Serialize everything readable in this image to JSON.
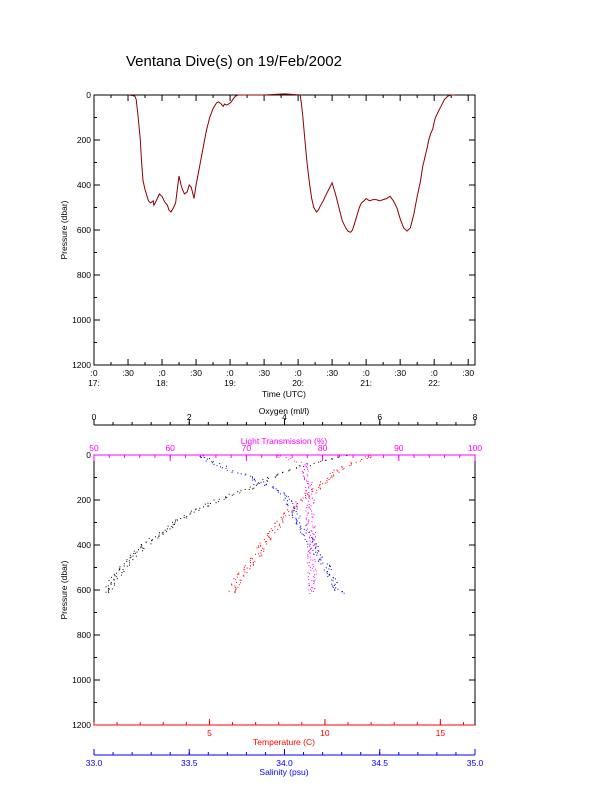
{
  "title": "Ventana Dive(s) on 19/Feb/2002",
  "colors": {
    "axes": "#000000",
    "pressure_trace": "#8b0000",
    "temperature": "#ff0000",
    "salinity": "#0000ff",
    "oxygen": "#000000",
    "light_transmission": "#ff00ff"
  },
  "chart_data": [
    {
      "type": "line",
      "title": "Ventana Dive(s) on 19/Feb/2002",
      "xlabel": "Time (UTC)",
      "ylabel": "Pressure (dbar)",
      "x_unit": "hours UTC",
      "xlim": [
        17.0,
        22.6
      ],
      "ylim": [
        1200,
        0
      ],
      "y_ticks": [
        0,
        200,
        400,
        600,
        800,
        1000,
        1200
      ],
      "x_ticks": [
        {
          "x": 17.0,
          "minute": ":0",
          "hour": "17:"
        },
        {
          "x": 17.5,
          "minute": ":30",
          "hour": ""
        },
        {
          "x": 18.0,
          "minute": ":0",
          "hour": "18:"
        },
        {
          "x": 18.5,
          "minute": ":30",
          "hour": ""
        },
        {
          "x": 19.0,
          "minute": ":0",
          "hour": "19:"
        },
        {
          "x": 19.5,
          "minute": ":30",
          "hour": ""
        },
        {
          "x": 20.0,
          "minute": ":0",
          "hour": "20:"
        },
        {
          "x": 20.5,
          "minute": ":30",
          "hour": ""
        },
        {
          "x": 21.0,
          "minute": ":0",
          "hour": "21:"
        },
        {
          "x": 21.5,
          "minute": ":30",
          "hour": ""
        },
        {
          "x": 22.0,
          "minute": ":0",
          "hour": "22:"
        },
        {
          "x": 22.5,
          "minute": ":30",
          "hour": ""
        }
      ],
      "series": [
        {
          "x": [
            17.52,
            17.6,
            17.62,
            17.65,
            17.68,
            17.7,
            17.72,
            17.75,
            17.78,
            17.8,
            17.83,
            17.87,
            17.88,
            17.9,
            17.93,
            17.96,
            18.0,
            18.03,
            18.05,
            18.08,
            18.1,
            18.13,
            18.17,
            18.2,
            18.22,
            18.25,
            18.28,
            18.3,
            18.33,
            18.37,
            18.4,
            18.43,
            18.47,
            18.5,
            18.55,
            18.6,
            18.65,
            18.7,
            18.75,
            18.8,
            18.83,
            18.87,
            18.9,
            18.92,
            18.95,
            18.98,
            19.0,
            19.02,
            19.05,
            19.08,
            19.12,
            19.15,
            19.2,
            19.3,
            19.5,
            19.8,
            20.03,
            20.05,
            20.07,
            20.1,
            20.13,
            20.17,
            20.2,
            20.23,
            20.27,
            20.3,
            20.33,
            20.37,
            20.4,
            20.45,
            20.5,
            20.55,
            20.6,
            20.65,
            20.7,
            20.73,
            20.77,
            20.8,
            20.83,
            20.87,
            20.9,
            20.93,
            20.97,
            21.0,
            21.05,
            21.1,
            21.15,
            21.2,
            21.25,
            21.3,
            21.35,
            21.4,
            21.45,
            21.5,
            21.55,
            21.6,
            21.65,
            21.7,
            21.75,
            21.8,
            21.83,
            21.87,
            21.9,
            21.92,
            21.95,
            21.98,
            22.0,
            22.02,
            22.05,
            22.1,
            22.15,
            22.2,
            22.25,
            22.3
          ],
          "y": [
            0,
            5,
            20,
            100,
            200,
            300,
            380,
            420,
            450,
            470,
            480,
            470,
            490,
            480,
            460,
            440,
            450,
            470,
            480,
            490,
            510,
            520,
            500,
            480,
            430,
            360,
            400,
            420,
            440,
            430,
            400,
            410,
            460,
            400,
            320,
            240,
            160,
            100,
            60,
            35,
            30,
            40,
            50,
            40,
            45,
            40,
            35,
            30,
            15,
            5,
            0,
            0,
            0,
            0,
            0,
            -5,
            0,
            40,
            100,
            200,
            300,
            400,
            460,
            500,
            520,
            510,
            490,
            470,
            450,
            420,
            390,
            440,
            500,
            560,
            590,
            605,
            610,
            600,
            570,
            530,
            500,
            480,
            470,
            460,
            470,
            465,
            465,
            470,
            465,
            460,
            450,
            470,
            500,
            550,
            590,
            605,
            590,
            530,
            450,
            380,
            320,
            270,
            230,
            200,
            170,
            150,
            120,
            100,
            80,
            50,
            20,
            5,
            0,
            0
          ]
        }
      ]
    },
    {
      "type": "scatter",
      "ylabel": "Pressure (dbar)",
      "ylim": [
        1200,
        0
      ],
      "y_ticks": [
        0,
        200,
        400,
        600,
        800,
        1000,
        1200
      ],
      "axes": {
        "oxygen": {
          "label": "Oxygen (ml/l)",
          "position": "top-outer",
          "range": [
            0,
            8
          ],
          "ticks": [
            0,
            2,
            4,
            6,
            8
          ],
          "color": "#000000"
        },
        "light_transmission": {
          "label": "Light Transmission (%)",
          "position": "top-inner",
          "range": [
            50,
            100
          ],
          "ticks": [
            50,
            60,
            70,
            80,
            90,
            100
          ],
          "color": "#ff00ff"
        },
        "temperature": {
          "label": "Temperature (C)",
          "position": "bottom-inner",
          "range": [
            0,
            16.5
          ],
          "ticks": [
            5,
            10,
            15
          ],
          "color": "#ff0000"
        },
        "salinity": {
          "label": "Salinity (psu)",
          "position": "bottom-outer",
          "range": [
            33.0,
            35.0
          ],
          "ticks": [
            "33.0",
            "33.5",
            "34.0",
            "34.5",
            "35.0"
          ],
          "color": "#0000ff"
        }
      },
      "series": [
        {
          "name": "Oxygen (ml/l)",
          "axis": "oxygen",
          "color": "#000000",
          "profile": [
            [
              0,
              5.3
            ],
            [
              20,
              4.9
            ],
            [
              50,
              4.3
            ],
            [
              100,
              3.7
            ],
            [
              150,
              3.2
            ],
            [
              200,
              2.6
            ],
            [
              250,
              2.1
            ],
            [
              300,
              1.7
            ],
            [
              350,
              1.35
            ],
            [
              400,
              1.05
            ],
            [
              450,
              0.8
            ],
            [
              500,
              0.6
            ],
            [
              550,
              0.4
            ],
            [
              600,
              0.3
            ],
            [
              615,
              0.28
            ]
          ]
        },
        {
          "name": "Light Transmission (%)",
          "axis": "light_transmission",
          "color": "#ff00ff",
          "profile": [
            [
              0,
              74
            ],
            [
              20,
              76
            ],
            [
              40,
              77.5
            ],
            [
              60,
              77.8
            ],
            [
              100,
              78
            ],
            [
              150,
              78.2
            ],
            [
              200,
              78.3
            ],
            [
              300,
              78.4
            ],
            [
              400,
              78.5
            ],
            [
              500,
              78.5
            ],
            [
              600,
              78.6
            ],
            [
              615,
              78.6
            ]
          ]
        },
        {
          "name": "Temperature (C)",
          "axis": "temperature",
          "color": "#ff0000",
          "profile": [
            [
              0,
              12.0
            ],
            [
              20,
              11.6
            ],
            [
              40,
              11.0
            ],
            [
              70,
              10.5
            ],
            [
              100,
              10.1
            ],
            [
              150,
              9.6
            ],
            [
              200,
              9.0
            ],
            [
              250,
              8.4
            ],
            [
              300,
              8.0
            ],
            [
              350,
              7.6
            ],
            [
              400,
              7.3
            ],
            [
              450,
              7.0
            ],
            [
              500,
              6.6
            ],
            [
              550,
              6.2
            ],
            [
              600,
              6.0
            ],
            [
              615,
              5.9
            ]
          ]
        },
        {
          "name": "Salinity (psu)",
          "axis": "salinity",
          "color": "#0000ff",
          "profile": [
            [
              0,
              33.55
            ],
            [
              30,
              33.62
            ],
            [
              60,
              33.7
            ],
            [
              100,
              33.82
            ],
            [
              150,
              33.95
            ],
            [
              200,
              34.02
            ],
            [
              250,
              34.05
            ],
            [
              300,
              34.08
            ],
            [
              350,
              34.11
            ],
            [
              400,
              34.15
            ],
            [
              450,
              34.18
            ],
            [
              500,
              34.22
            ],
            [
              550,
              34.25
            ],
            [
              600,
              34.28
            ],
            [
              615,
              34.29
            ]
          ]
        }
      ]
    }
  ]
}
